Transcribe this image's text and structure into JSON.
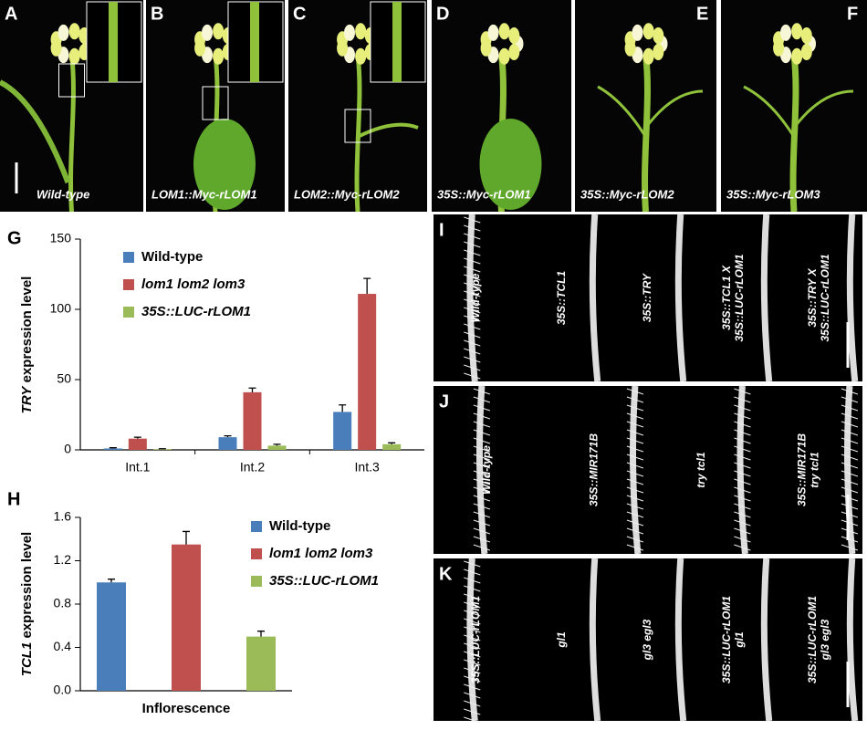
{
  "chart_data": [
    {
      "type": "bar",
      "letter": "G",
      "y_label": {
        "gene": "TRY",
        "text": "expression level"
      },
      "categories": [
        "Int.1",
        "Int.2",
        "Int.3"
      ],
      "series": [
        {
          "name": "Wild-type",
          "color": "#4a7ebb",
          "values": [
            1,
            9,
            27
          ],
          "errors": [
            0.5,
            1,
            5
          ]
        },
        {
          "name": "lom1 lom2 lom3",
          "color": "#c0504d",
          "values": [
            8,
            41,
            111
          ],
          "errors": [
            1,
            3,
            11
          ]
        },
        {
          "name": "35S::LUC-rLOM1",
          "color": "#9bbb59",
          "values": [
            0.5,
            3,
            4
          ],
          "errors": [
            0.3,
            1,
            1
          ]
        }
      ],
      "ylim": [
        0,
        150
      ],
      "yticks": [
        0,
        50,
        100,
        150
      ]
    },
    {
      "type": "bar",
      "letter": "H",
      "y_label": {
        "gene": "TCL1",
        "text": "expression level"
      },
      "categories": [
        "Inflorescence"
      ],
      "series": [
        {
          "name": "Wild-type",
          "color": "#4a7ebb",
          "values": [
            1.0
          ],
          "errors": [
            0.03
          ]
        },
        {
          "name": "lom1 lom2 lom3",
          "color": "#c0504d",
          "values": [
            1.35
          ],
          "errors": [
            0.12
          ]
        },
        {
          "name": "35S::LUC-rLOM1",
          "color": "#9bbb59",
          "values": [
            0.5
          ],
          "errors": [
            0.05
          ]
        }
      ],
      "ylim": [
        0,
        1.6
      ],
      "yticks": [
        {
          "value": 0,
          "label": "0.0"
        },
        0.4,
        0.8,
        1.2,
        1.6
      ]
    }
  ],
  "photos": [
    {
      "letter": "A",
      "caption": "Wild-type"
    },
    {
      "letter": "B",
      "caption": "LOM1::Myc-rLOM1"
    },
    {
      "letter": "C",
      "caption": "LOM2::Myc-rLOM2"
    },
    {
      "letter": "D",
      "caption": "35S::Myc-rLOM1"
    },
    {
      "letter": "E",
      "caption": "35S::Myc-rLOM2"
    },
    {
      "letter": "F",
      "caption": "35S::Myc-rLOM3"
    }
  ],
  "roots": [
    {
      "letter": "I",
      "labels": [
        [
          "Wild-type"
        ],
        [
          "35S::TCL1"
        ],
        [
          "35S::TRY"
        ],
        [
          "35S::TCL1 X",
          "35S::LUC-rLOM1"
        ],
        [
          "35S::TRY X",
          "35S::LUC-rLOM1"
        ]
      ]
    },
    {
      "letter": "J",
      "labels": [
        [
          "Wild-type"
        ],
        [
          "35S::MIR171B"
        ],
        [
          "try tcl1"
        ],
        [
          "35S::MIR171B",
          "try tcl1"
        ]
      ]
    },
    {
      "letter": "K",
      "labels": [
        [
          "35S::LUC-rLOM1"
        ],
        [
          "gl1"
        ],
        [
          "gl3 egl3"
        ],
        [
          "35S::LUC-rLOM1",
          "gl1"
        ],
        [
          "35S::LUC-rLOM1",
          "gl3 egl3"
        ]
      ]
    }
  ]
}
